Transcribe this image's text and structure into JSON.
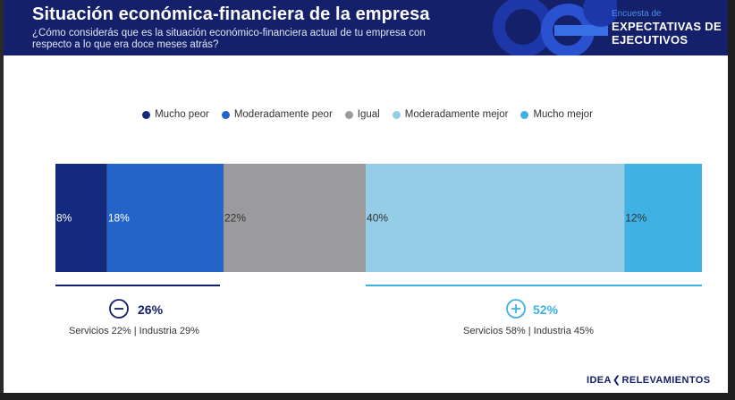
{
  "header": {
    "title": "Situación económica-financiera de la empresa",
    "subtitle": "¿Cómo considerás que es la situación económico-financiera actual de tu empresa con respecto a lo que era doce meses atrás?",
    "brand_small": "Encuesta de",
    "brand_big": "EXPECTATIVAS DE EJECUTIVOS"
  },
  "chart_data": {
    "type": "bar",
    "orientation": "horizontal-stacked-100",
    "categories": [
      "Mucho peor",
      "Moderadamente peor",
      "Igual",
      "Moderadamente mejor",
      "Mucho mejor"
    ],
    "values": [
      8,
      18,
      22,
      40,
      12
    ],
    "labels": [
      "8%",
      "18%",
      "22%",
      "40%",
      "12%"
    ],
    "colors": [
      "#142a7c",
      "#2463c8",
      "#9b9b9d",
      "#95cde6",
      "#3fb2e3"
    ],
    "legend_position": "top"
  },
  "summary": {
    "negative": {
      "pct": "26%",
      "detail": "Servicios 22% | Industria 29%",
      "color": "#14216a"
    },
    "positive": {
      "pct": "52%",
      "detail": "Servicios 58% | Industria 45%",
      "color": "#3fb2e3"
    }
  },
  "footer": {
    "logo_left": "IDEA",
    "logo_right": "RELEVAMIENTOS"
  }
}
